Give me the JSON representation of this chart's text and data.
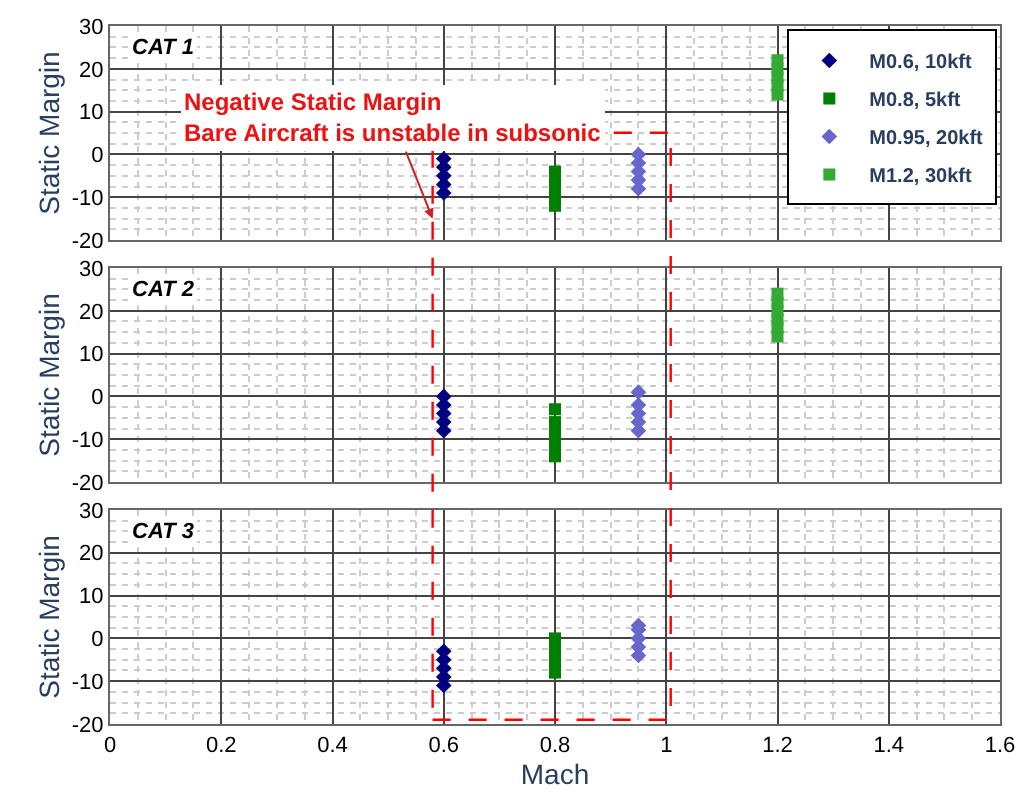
{
  "chart_data": [
    {
      "type": "scatter",
      "annotations": [
        "CAT 1",
        "Negative Static Margin\nBare Aircraft is unstable in subsonic"
      ],
      "ylabel": "Static Margin",
      "xlim": [
        0,
        1.6
      ],
      "xticks": [
        0,
        0.2,
        0.4,
        0.6,
        0.8,
        1,
        1.2,
        1.4,
        1.6
      ],
      "ylim": [
        -20,
        30
      ],
      "yticks": [
        -20,
        -10,
        0,
        10,
        20,
        30
      ],
      "grid": true,
      "legend": "top right",
      "tick_labels": "y",
      "series": [
        {
          "name": "M0.6, 10kft",
          "color": "#000080",
          "marker": "diamond",
          "x": [
            0.6,
            0.6,
            0.6,
            0.6,
            0.6
          ],
          "values": [
            -9,
            -7,
            -5,
            -3,
            -1
          ]
        },
        {
          "name": "M0.8, 5kft",
          "color": "#008000",
          "marker": "square",
          "x": [
            0.8,
            0.8,
            0.8,
            0.8,
            0.8
          ],
          "values": [
            -12,
            -10,
            -8,
            -6,
            -4
          ]
        },
        {
          "name": "M0.95, 20kft",
          "color": "#6666cc",
          "marker": "diamond",
          "x": [
            0.95,
            0.95,
            0.95,
            0.95,
            0.95
          ],
          "values": [
            -8,
            -6,
            -4,
            -2,
            0
          ]
        },
        {
          "name": "M1.2, 30kft",
          "color": "#33aa33",
          "marker": "square",
          "x": [
            1.2,
            1.2,
            1.2,
            1.2,
            1.2
          ],
          "values": [
            14,
            16,
            18,
            20,
            22
          ]
        }
      ]
    },
    {
      "type": "scatter",
      "annotations": [
        "CAT 2"
      ],
      "ylabel": "Static Margin",
      "xlim": [
        0,
        1.6
      ],
      "xticks": [
        0,
        0.2,
        0.4,
        0.6,
        0.8,
        1,
        1.2,
        1.4,
        1.6
      ],
      "ylim": [
        -20,
        30
      ],
      "yticks": [
        -20,
        -10,
        0,
        10,
        20,
        30
      ],
      "grid": true,
      "tick_labels": "y",
      "series": [
        {
          "color": "#000080",
          "marker": "diamond",
          "x": [
            0.6,
            0.6,
            0.6,
            0.6,
            0.6
          ],
          "values": [
            -8,
            -6,
            -4,
            -2,
            0
          ]
        },
        {
          "color": "#008000",
          "marker": "square",
          "x": [
            0.8,
            0.8,
            0.8,
            0.8,
            0.8,
            0.8
          ],
          "values": [
            -14,
            -12,
            -10,
            -8,
            -6,
            -3
          ]
        },
        {
          "color": "#6666cc",
          "marker": "diamond",
          "x": [
            0.95,
            0.95,
            0.95,
            0.95,
            0.95
          ],
          "values": [
            -8,
            -6,
            -4,
            -2,
            1
          ]
        },
        {
          "color": "#33aa33",
          "marker": "square",
          "x": [
            1.2,
            1.2,
            1.2,
            1.2,
            1.2,
            1.2
          ],
          "values": [
            14,
            16,
            18,
            20,
            22,
            24
          ]
        }
      ]
    },
    {
      "type": "scatter",
      "annotations": [
        "CAT 3"
      ],
      "xlabel": "Mach",
      "ylabel": "Static Margin",
      "xlim": [
        0,
        1.6
      ],
      "xticks": [
        0,
        0.2,
        0.4,
        0.6,
        0.8,
        1,
        1.2,
        1.4,
        1.6
      ],
      "ylim": [
        -20,
        30
      ],
      "yticks": [
        -20,
        -10,
        0,
        10,
        20,
        30
      ],
      "grid": true,
      "series": [
        {
          "color": "#000080",
          "marker": "diamond",
          "x": [
            0.6,
            0.6,
            0.6,
            0.6,
            0.6
          ],
          "values": [
            -11,
            -9,
            -7,
            -5,
            -3
          ]
        },
        {
          "color": "#008000",
          "marker": "square",
          "x": [
            0.8,
            0.8,
            0.8,
            0.8,
            0.8
          ],
          "values": [
            -8,
            -6,
            -4,
            -2,
            0
          ]
        },
        {
          "color": "#6666cc",
          "marker": "diamond",
          "x": [
            0.95,
            0.95,
            0.95,
            0.95,
            0.95
          ],
          "values": [
            -4,
            -2,
            0,
            2,
            3
          ]
        }
      ]
    }
  ]
}
